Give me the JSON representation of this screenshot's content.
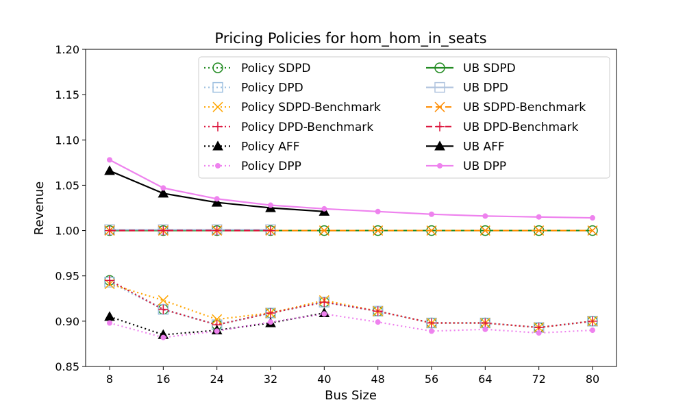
{
  "chart_data": {
    "type": "line",
    "title": "Pricing Policies for hom_hom_in_seats",
    "xlabel": "Bus Size",
    "ylabel": "Revenue",
    "x": [
      8,
      16,
      24,
      32,
      40,
      48,
      56,
      64,
      72,
      80
    ],
    "x_ticks": [
      "8",
      "16",
      "24",
      "32",
      "40",
      "48",
      "56",
      "64",
      "72",
      "80"
    ],
    "ylim": [
      0.85,
      1.2
    ],
    "y_ticks": [
      "0.85",
      "0.90",
      "0.95",
      "1.00",
      "1.05",
      "1.10",
      "1.15",
      "1.20"
    ],
    "grid": false,
    "legend_placement": "top-center",
    "series": [
      {
        "name": "Policy SDPD",
        "color": "#228b22",
        "line": "dotted",
        "marker": "circle-open",
        "values": [
          0.945,
          0.913,
          0.896,
          0.909,
          0.921,
          0.911,
          0.898,
          0.898,
          0.893,
          0.9
        ]
      },
      {
        "name": "Policy DPD",
        "color": "#9ec0e0",
        "line": "dotted",
        "marker": "square-open",
        "values": [
          0.943,
          0.913,
          0.896,
          0.909,
          0.921,
          0.911,
          0.898,
          0.898,
          0.893,
          0.9
        ]
      },
      {
        "name": "Policy SDPD-Benchmark",
        "color": "#ffa500",
        "line": "dotted",
        "marker": "x",
        "values": [
          0.941,
          0.923,
          0.902,
          0.909,
          0.923,
          0.911,
          0.898,
          0.898,
          0.893,
          0.9
        ]
      },
      {
        "name": "Policy DPD-Benchmark",
        "color": "#dc143c",
        "line": "dotted",
        "marker": "plus",
        "values": [
          0.945,
          0.913,
          0.896,
          0.909,
          0.921,
          0.911,
          0.898,
          0.898,
          0.893,
          0.9
        ]
      },
      {
        "name": "Policy AFF",
        "color": "#000000",
        "line": "dotted",
        "marker": "triangle",
        "values": [
          0.905,
          0.885,
          0.89,
          0.898,
          0.909,
          null,
          null,
          null,
          null,
          null
        ]
      },
      {
        "name": "Policy DPP",
        "color": "#ee82ee",
        "line": "dotted",
        "marker": "dot",
        "values": [
          0.898,
          0.882,
          0.889,
          0.899,
          0.908,
          0.899,
          0.889,
          0.891,
          0.887,
          0.89
        ]
      },
      {
        "name": "UB SDPD",
        "color": "#228b22",
        "line": "solid",
        "marker": "circle-open",
        "values": [
          1.0,
          1.0,
          1.0,
          1.0,
          1.0,
          1.0,
          1.0,
          1.0,
          1.0,
          1.0
        ]
      },
      {
        "name": "UB DPD",
        "color": "#b0c4de",
        "line": "solid",
        "marker": "square-open",
        "values": [
          1.001,
          1.001,
          1.001,
          1.001,
          null,
          null,
          null,
          null,
          null,
          null
        ]
      },
      {
        "name": "UB SDPD-Benchmark",
        "color": "#ff8c00",
        "line": "dashed",
        "marker": "x",
        "values": [
          1.0,
          1.0,
          1.0,
          1.0,
          1.0,
          1.0,
          1.0,
          1.0,
          1.0,
          1.0
        ]
      },
      {
        "name": "UB DPD-Benchmark",
        "color": "#dc143c",
        "line": "dashed",
        "marker": "plus",
        "values": [
          1.0,
          1.0,
          1.0,
          1.0,
          null,
          null,
          null,
          null,
          null,
          null
        ]
      },
      {
        "name": "UB AFF",
        "color": "#000000",
        "line": "solid",
        "marker": "triangle",
        "values": [
          1.066,
          1.041,
          1.031,
          1.025,
          1.021,
          null,
          null,
          null,
          null,
          null
        ]
      },
      {
        "name": "UB DPP",
        "color": "#ee82ee",
        "line": "solid",
        "marker": "dot",
        "values": [
          1.078,
          1.047,
          1.035,
          1.028,
          1.024,
          1.021,
          1.018,
          1.016,
          1.015,
          1.014
        ]
      }
    ]
  }
}
